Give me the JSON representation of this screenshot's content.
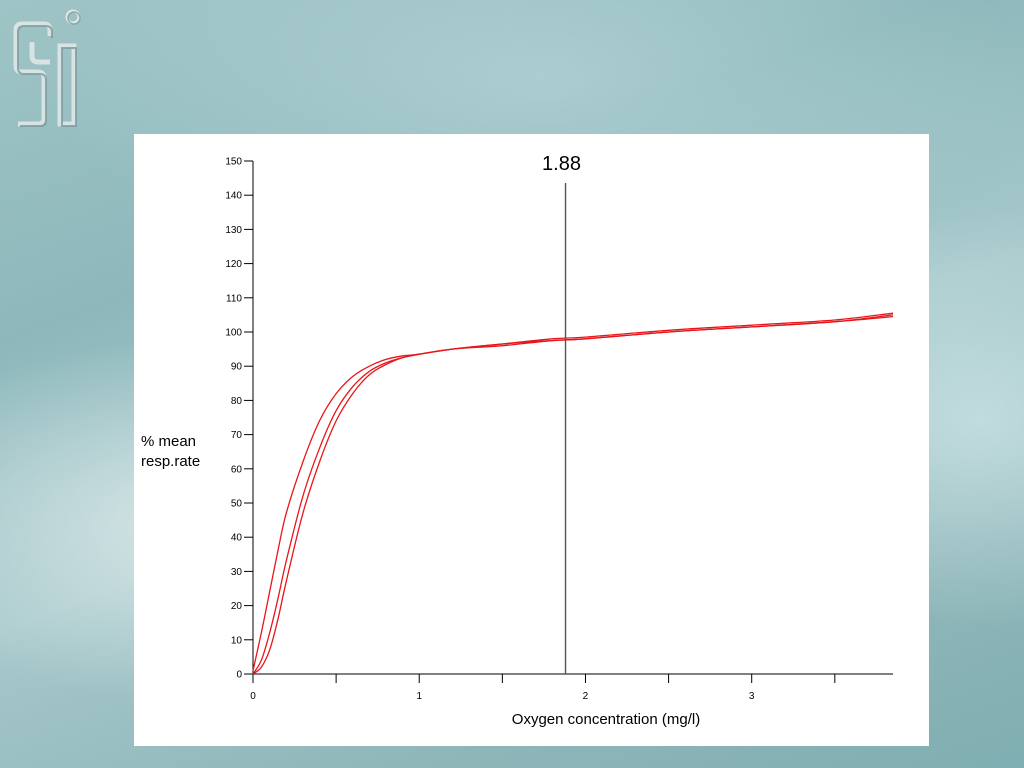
{
  "logo": {
    "icon": "si-logo-icon"
  },
  "chart_data": {
    "type": "line",
    "title": "",
    "xlabel": "Oxygen concentration (mg/l)",
    "ylabel_lines": [
      "% mean",
      "resp.rate"
    ],
    "xlim": [
      0,
      3.85
    ],
    "ylim": [
      0,
      150
    ],
    "x_ticks": [
      0,
      1,
      2,
      3
    ],
    "x_minor_ticks": [
      0.5,
      1.5,
      2.5,
      3.5
    ],
    "y_ticks": [
      0,
      10,
      20,
      30,
      40,
      50,
      60,
      70,
      80,
      90,
      100,
      110,
      120,
      130,
      140,
      150
    ],
    "grid": false,
    "legend": "none",
    "color": "#e8161a",
    "marker": {
      "x": 1.88,
      "label": "1.88"
    },
    "series": [
      {
        "x": [
          0,
          0.05,
          0.1,
          0.15,
          0.2,
          0.3,
          0.4,
          0.5,
          0.6,
          0.7,
          0.8,
          0.9,
          1.0,
          1.2,
          1.5,
          1.8,
          2.0,
          2.5,
          3.0,
          3.5,
          3.85
        ],
        "y": [
          1,
          12,
          24,
          36,
          47,
          62,
          74,
          82,
          87,
          90,
          92,
          93,
          93.5,
          95,
          96.5,
          97.5,
          98,
          100,
          101.5,
          103,
          105
        ]
      },
      {
        "x": [
          0,
          0.05,
          0.1,
          0.15,
          0.2,
          0.3,
          0.4,
          0.5,
          0.6,
          0.7,
          0.8,
          0.9,
          1.0,
          1.2,
          1.5,
          1.8,
          2.0,
          2.5,
          3.0,
          3.5,
          3.85
        ],
        "y": [
          0,
          4,
          12,
          22,
          33,
          52,
          66,
          77,
          84,
          88.5,
          91,
          92.5,
          93.5,
          95,
          96.5,
          98,
          98.5,
          100.5,
          102,
          103.5,
          105.5
        ]
      },
      {
        "x": [
          0,
          0.05,
          0.1,
          0.15,
          0.2,
          0.3,
          0.4,
          0.5,
          0.6,
          0.7,
          0.8,
          0.9,
          1.0,
          1.2,
          1.5,
          1.8,
          2.0,
          2.5,
          3.0,
          3.5,
          3.85
        ],
        "y": [
          0,
          2,
          7,
          16,
          27,
          47,
          62,
          74,
          82,
          87.5,
          90.5,
          92.5,
          93.5,
          95,
          96,
          97.5,
          98,
          100,
          101.5,
          103,
          104.5
        ]
      }
    ]
  }
}
